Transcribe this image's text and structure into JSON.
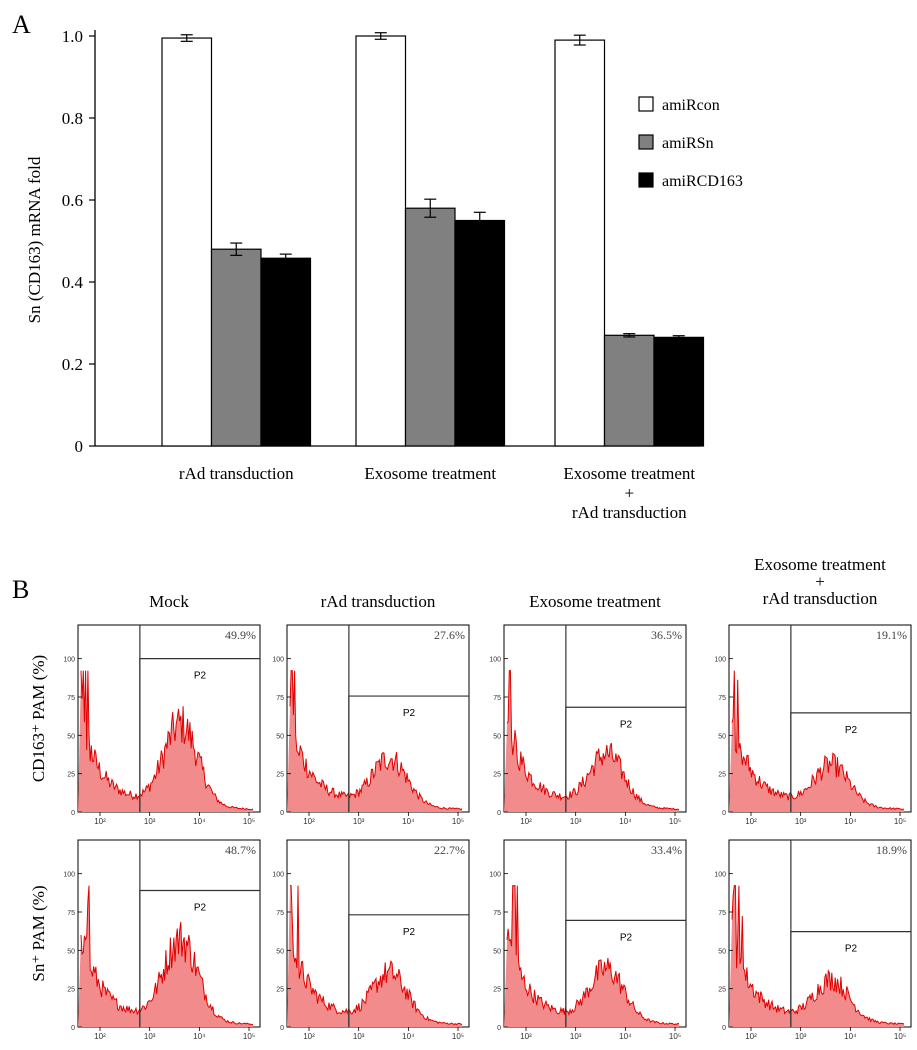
{
  "chart_data": [
    {
      "panel_letter": "A",
      "type": "bar",
      "ylabel": "Sn (CD163) mRNA fold",
      "ylim": [
        0,
        1.0
      ],
      "yticks": [
        "0",
        "0.2",
        "0.4",
        "0.6",
        "0.8",
        "1.0"
      ],
      "ytick_values": [
        0,
        0.2,
        0.4,
        0.6,
        0.8,
        1.0
      ],
      "categories": [
        [
          "rAd transduction"
        ],
        [
          "Exosome treatment"
        ],
        [
          "Exosome treatment",
          "+",
          "rAd transduction"
        ]
      ],
      "series": [
        {
          "name": "amiRcon",
          "color": "#ffffff",
          "values": [
            0.995,
            1.0,
            0.99
          ],
          "errors": [
            0.008,
            0.008,
            0.012
          ]
        },
        {
          "name": "amiRSn",
          "color": "#808080",
          "values": [
            0.48,
            0.58,
            0.27
          ],
          "errors": [
            0.015,
            0.022,
            0.004
          ]
        },
        {
          "name": "amiRCD163",
          "color": "#000000",
          "values": [
            0.458,
            0.55,
            0.265
          ],
          "errors": [
            0.01,
            0.02,
            0.004
          ]
        }
      ],
      "legend_position": "right"
    },
    {
      "panel_letter": "B",
      "type": "area",
      "columns": [
        [
          "Mock"
        ],
        [
          "rAd transduction"
        ],
        [
          "Exosome treatment"
        ],
        [
          "Exosome treatment",
          "+",
          "rAd transduction"
        ]
      ],
      "rows": [
        {
          "ylabel": "CD163⁺ PAM (%)",
          "percentages": [
            "49.9%",
            "27.6%",
            "36.5%",
            "19.1%"
          ],
          "gate_levels": [
            0.82,
            0.62,
            0.56,
            0.53
          ]
        },
        {
          "ylabel": "Sn⁺ PAM (%)",
          "percentages": [
            "48.7%",
            "22.7%",
            "33.4%",
            "18.9%"
          ],
          "gate_levels": [
            0.73,
            0.6,
            0.57,
            0.51
          ]
        }
      ],
      "gate_label": "P2",
      "yticks": [
        "0",
        "25",
        "50",
        "75",
        "100"
      ],
      "xticks": [
        "10²",
        "10³",
        "10⁴",
        "10⁵"
      ],
      "fill_color": "#f28c8c",
      "line_color": "#e00000"
    }
  ]
}
